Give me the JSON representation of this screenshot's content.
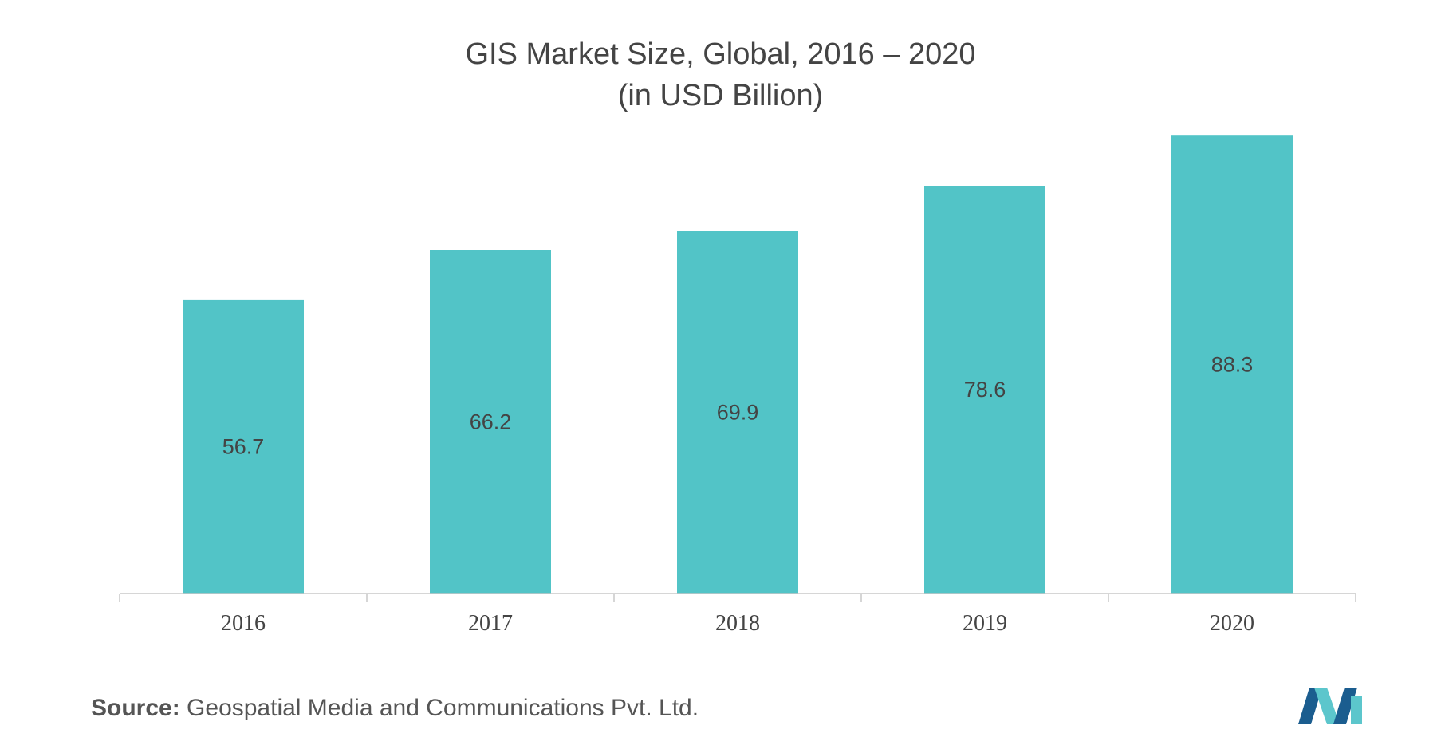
{
  "colors": {
    "bar": "#52c4c7",
    "axis": "#c8c8c8",
    "text": "#444444",
    "logo_dark": "#1b5d8f",
    "logo_light": "#5cc6cc"
  },
  "source": {
    "label": "Source:",
    "text": "Geospatial Media and Communications Pvt. Ltd."
  },
  "logo": {
    "icon": "mordor-intelligence-logo-icon"
  },
  "chart_data": {
    "type": "bar",
    "title": "GIS Market Size, Global, 2016 – 2020",
    "subtitle": "(in USD Billion)",
    "xlabel": "",
    "ylabel": "",
    "categories": [
      "2016",
      "2017",
      "2018",
      "2019",
      "2020"
    ],
    "values": [
      56.7,
      66.2,
      69.9,
      78.6,
      88.3
    ],
    "value_labels": [
      "56.7",
      "66.2",
      "69.9",
      "78.6",
      "88.3"
    ],
    "ylim": [
      0,
      90
    ],
    "grid": false,
    "legend": "none"
  }
}
